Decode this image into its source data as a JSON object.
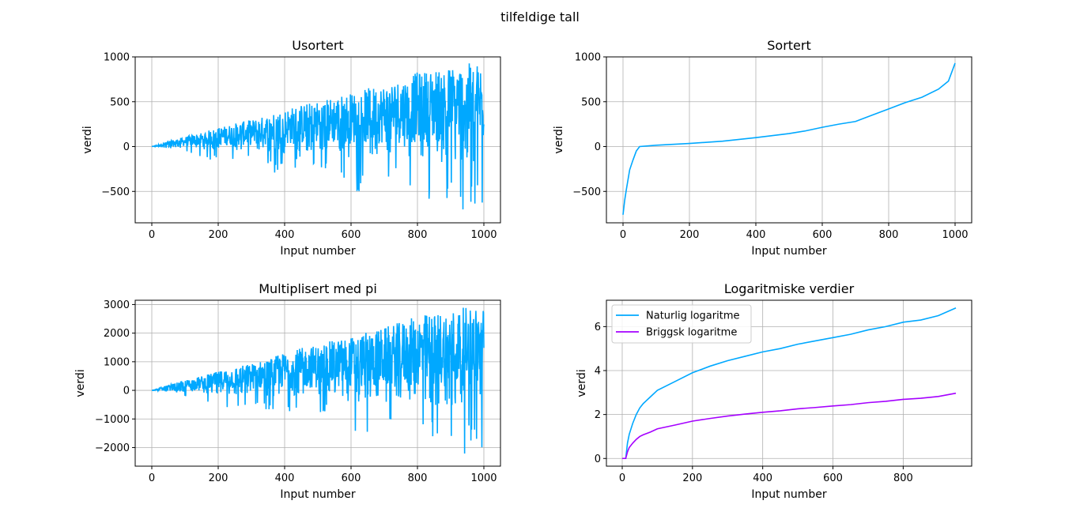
{
  "figure": {
    "suptitle": "tilfeldige tall"
  },
  "colors": {
    "cyan": "#00a8ff",
    "purple": "#a500ff",
    "grid": "#b0b0b0"
  },
  "chart_data": [
    {
      "id": "usortert",
      "type": "line",
      "title": "Usortert",
      "xlabel": "Input number",
      "ylabel": "verdi",
      "xlim": [
        -50,
        1050
      ],
      "ylim": [
        -850,
        1000
      ],
      "xticks": [
        0,
        200,
        400,
        600,
        800,
        1000
      ],
      "yticks": [
        -500,
        0,
        500,
        1000
      ],
      "xtick_labels": [
        "0",
        "200",
        "400",
        "600",
        "800",
        "1000"
      ],
      "ytick_labels": [
        "−500",
        "0",
        "500",
        "1000"
      ],
      "grid": true,
      "series": [
        {
          "color": "#00a8ff",
          "description": "noisy values growing with index",
          "x": [
            0,
            50,
            100,
            150,
            200,
            250,
            300,
            350,
            400,
            450,
            500,
            550,
            600,
            650,
            700,
            750,
            800,
            850,
            900,
            950,
            1000
          ],
          "y_upper": [
            0,
            60,
            110,
            160,
            210,
            260,
            300,
            350,
            420,
            470,
            510,
            560,
            600,
            650,
            700,
            760,
            830,
            870,
            900,
            930,
            930
          ],
          "y_lower": [
            0,
            -20,
            -70,
            -110,
            -200,
            -200,
            -150,
            -250,
            -380,
            -200,
            -250,
            -250,
            -560,
            -550,
            -530,
            -450,
            -530,
            -660,
            -740,
            -750,
            -770
          ]
        }
      ]
    },
    {
      "id": "sortert",
      "type": "line",
      "title": "Sortert",
      "xlabel": "Input number",
      "ylabel": "verdi",
      "xlim": [
        -50,
        1050
      ],
      "ylim": [
        -850,
        1000
      ],
      "xticks": [
        0,
        200,
        400,
        600,
        800,
        1000
      ],
      "yticks": [
        -500,
        0,
        500,
        1000
      ],
      "xtick_labels": [
        "0",
        "200",
        "400",
        "600",
        "800",
        "1000"
      ],
      "ytick_labels": [
        "−500",
        "0",
        "500",
        "1000"
      ],
      "grid": true,
      "series": [
        {
          "color": "#00a8ff",
          "x": [
            0,
            5,
            10,
            20,
            30,
            40,
            50,
            100,
            200,
            300,
            400,
            500,
            550,
            600,
            650,
            700,
            750,
            800,
            850,
            900,
            950,
            980,
            1000
          ],
          "y": [
            -760,
            -600,
            -480,
            -260,
            -150,
            -50,
            0,
            15,
            35,
            60,
            100,
            145,
            175,
            215,
            250,
            280,
            350,
            420,
            490,
            550,
            640,
            730,
            930
          ]
        }
      ]
    },
    {
      "id": "multiplisert",
      "type": "line",
      "title": "Multiplisert med pi",
      "xlabel": "Input number",
      "ylabel": "verdi",
      "xlim": [
        -50,
        1050
      ],
      "ylim": [
        -2650,
        3150
      ],
      "xticks": [
        0,
        200,
        400,
        600,
        800,
        1000
      ],
      "yticks": [
        -2000,
        -1000,
        0,
        1000,
        2000,
        3000
      ],
      "xtick_labels": [
        "0",
        "200",
        "400",
        "600",
        "800",
        "1000"
      ],
      "ytick_labels": [
        "−2000",
        "−1000",
        "0",
        "1000",
        "2000",
        "3000"
      ],
      "grid": true,
      "series": [
        {
          "color": "#00a8ff",
          "description": "Usortert values multiplied by pi",
          "x": [
            0,
            50,
            100,
            150,
            200,
            250,
            300,
            350,
            400,
            450,
            500,
            550,
            600,
            650,
            700,
            750,
            800,
            850,
            900,
            950,
            1000
          ],
          "y_upper": [
            0,
            190,
            350,
            500,
            660,
            820,
            940,
            1100,
            1320,
            1480,
            1600,
            1760,
            1880,
            2040,
            2200,
            2390,
            2610,
            2730,
            2830,
            2920,
            2920
          ],
          "y_lower": [
            0,
            -60,
            -220,
            -350,
            -630,
            -630,
            -470,
            -790,
            -1190,
            -630,
            -790,
            -790,
            -1760,
            -1730,
            -1670,
            -1410,
            -1670,
            -2070,
            -2330,
            -2360,
            -2420
          ]
        }
      ]
    },
    {
      "id": "logaritmiske",
      "type": "line",
      "title": "Logaritmiske verdier",
      "xlabel": "Input number",
      "ylabel": "verdi",
      "xlim": [
        -45,
        995
      ],
      "ylim": [
        -0.35,
        7.2
      ],
      "xticks": [
        0,
        200,
        400,
        600,
        800
      ],
      "yticks": [
        0,
        2,
        4,
        6
      ],
      "xtick_labels": [
        "0",
        "200",
        "400",
        "600",
        "800"
      ],
      "ytick_labels": [
        "0",
        "2",
        "4",
        "6"
      ],
      "grid": true,
      "legend": {
        "placement": "upper-left"
      },
      "series": [
        {
          "name": "Naturlig logaritme",
          "color": "#00a8ff",
          "x": [
            0,
            10,
            15,
            20,
            30,
            40,
            50,
            60,
            80,
            100,
            150,
            200,
            250,
            300,
            350,
            400,
            450,
            500,
            550,
            600,
            650,
            700,
            750,
            800,
            850,
            900,
            950
          ],
          "y": [
            0,
            0,
            0.7,
            1.1,
            1.6,
            2.0,
            2.3,
            2.5,
            2.8,
            3.1,
            3.5,
            3.9,
            4.2,
            4.45,
            4.65,
            4.85,
            5.0,
            5.2,
            5.35,
            5.5,
            5.65,
            5.85,
            6.0,
            6.2,
            6.3,
            6.5,
            6.85
          ]
        },
        {
          "name": "Briggsk logaritme",
          "color": "#a500ff",
          "x": [
            0,
            10,
            15,
            20,
            30,
            40,
            50,
            60,
            80,
            100,
            150,
            200,
            250,
            300,
            350,
            400,
            450,
            500,
            550,
            600,
            650,
            700,
            750,
            800,
            850,
            900,
            950
          ],
          "y": [
            0,
            0,
            0.3,
            0.5,
            0.7,
            0.87,
            1.0,
            1.08,
            1.2,
            1.35,
            1.52,
            1.7,
            1.82,
            1.93,
            2.02,
            2.1,
            2.17,
            2.26,
            2.32,
            2.39,
            2.45,
            2.54,
            2.6,
            2.69,
            2.74,
            2.82,
            2.97
          ]
        }
      ]
    }
  ]
}
